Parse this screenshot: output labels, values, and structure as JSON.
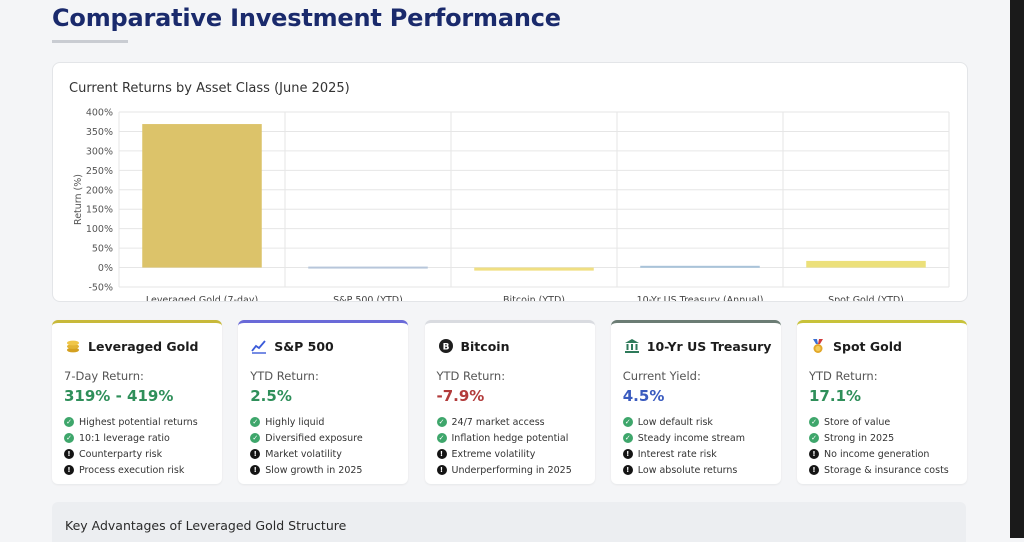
{
  "page": {
    "title": "Comparative Investment Performance"
  },
  "chart_data": {
    "type": "bar",
    "title": "Current Returns by Asset Class (June 2025)",
    "ylabel": "Return (%)",
    "xlabel": "",
    "categories": [
      "Leveraged Gold (7-day)",
      "S&P 500 (YTD)",
      "Bitcoin (YTD)",
      "10-Yr US Treasury (Annual)",
      "Spot Gold (YTD)"
    ],
    "values": [
      369,
      2.5,
      -7.9,
      4.5,
      17.1
    ],
    "ylim": [
      -50,
      400
    ],
    "yticks": [
      -50,
      0,
      50,
      100,
      150,
      200,
      250,
      300,
      350,
      400
    ],
    "ytick_labels": [
      "-50%",
      "0%",
      "50%",
      "100%",
      "150%",
      "200%",
      "250%",
      "300%",
      "350%",
      "400%"
    ],
    "colors": [
      "#dcc36a",
      "#b7c6da",
      "#f0df82",
      "#a9c3d9",
      "#ece07a"
    ],
    "grid": true,
    "legend": "none"
  },
  "cards": [
    {
      "name": "Leveraged Gold",
      "icon": "coins-icon",
      "accent": "#c8b93a",
      "metric_label": "7-Day Return:",
      "value": "319% - 419%",
      "value_color": "#2f8f5a",
      "points": [
        {
          "text": "Highest potential returns",
          "type": "pro"
        },
        {
          "text": "10:1 leverage ratio",
          "type": "pro"
        },
        {
          "text": "Counterparty risk",
          "type": "con"
        },
        {
          "text": "Process execution risk",
          "type": "con"
        }
      ]
    },
    {
      "name": "S&P 500",
      "icon": "trend-chart-icon",
      "accent": "#6a6ad8",
      "metric_label": "YTD Return:",
      "value": "2.5%",
      "value_color": "#2f8f5a",
      "points": [
        {
          "text": "Highly liquid",
          "type": "pro"
        },
        {
          "text": "Diversified exposure",
          "type": "pro"
        },
        {
          "text": "Market volatility",
          "type": "con"
        },
        {
          "text": "Slow growth in 2025",
          "type": "con"
        }
      ]
    },
    {
      "name": "Bitcoin",
      "icon": "bitcoin-icon",
      "accent": "#d9dbe0",
      "metric_label": "YTD Return:",
      "value": "-7.9%",
      "value_color": "#b23b3b",
      "points": [
        {
          "text": "24/7 market access",
          "type": "pro"
        },
        {
          "text": "Inflation hedge potential",
          "type": "pro"
        },
        {
          "text": "Extreme volatility",
          "type": "con"
        },
        {
          "text": "Underperforming in 2025",
          "type": "con"
        }
      ]
    },
    {
      "name": "10-Yr US Treasury",
      "icon": "bank-building-icon",
      "accent": "#6b7c74",
      "metric_label": "Current Yield:",
      "value": "4.5%",
      "value_color": "#3a5bbf",
      "points": [
        {
          "text": "Low default risk",
          "type": "pro"
        },
        {
          "text": "Steady income stream",
          "type": "pro"
        },
        {
          "text": "Interest rate risk",
          "type": "con"
        },
        {
          "text": "Low absolute returns",
          "type": "con"
        }
      ]
    },
    {
      "name": "Spot Gold",
      "icon": "medal-icon",
      "accent": "#c8c23a",
      "metric_label": "YTD Return:",
      "value": "17.1%",
      "value_color": "#2f8f5a",
      "points": [
        {
          "text": "Store of value",
          "type": "pro"
        },
        {
          "text": "Strong in 2025",
          "type": "pro"
        },
        {
          "text": "No income generation",
          "type": "con"
        },
        {
          "text": "Storage & insurance costs",
          "type": "con"
        }
      ]
    }
  ],
  "advantages": {
    "title": "Key Advantages of Leveraged Gold Structure"
  }
}
